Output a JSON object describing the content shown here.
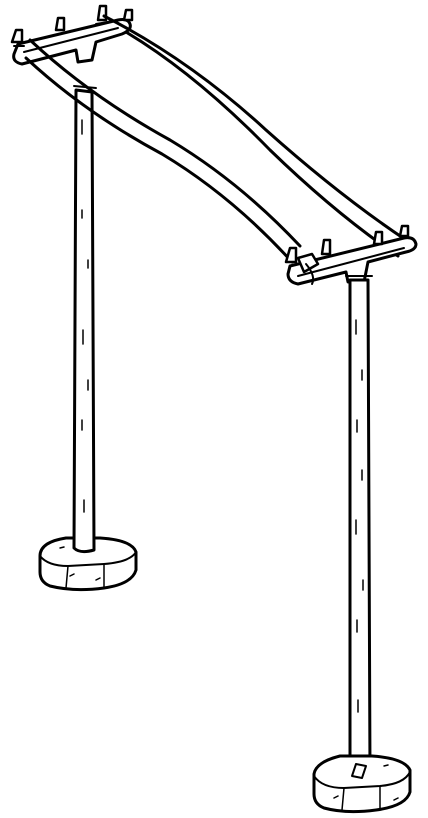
{
  "illustration": {
    "subject": "",
    "colors": {
      "ink": "#000000",
      "paper": "#ffffff"
    },
    "parts": [
      "left-post",
      "right-post",
      "left-base",
      "right-base",
      "left-crossarm",
      "right-crossarm",
      "front-wire",
      "back-wire"
    ]
  }
}
